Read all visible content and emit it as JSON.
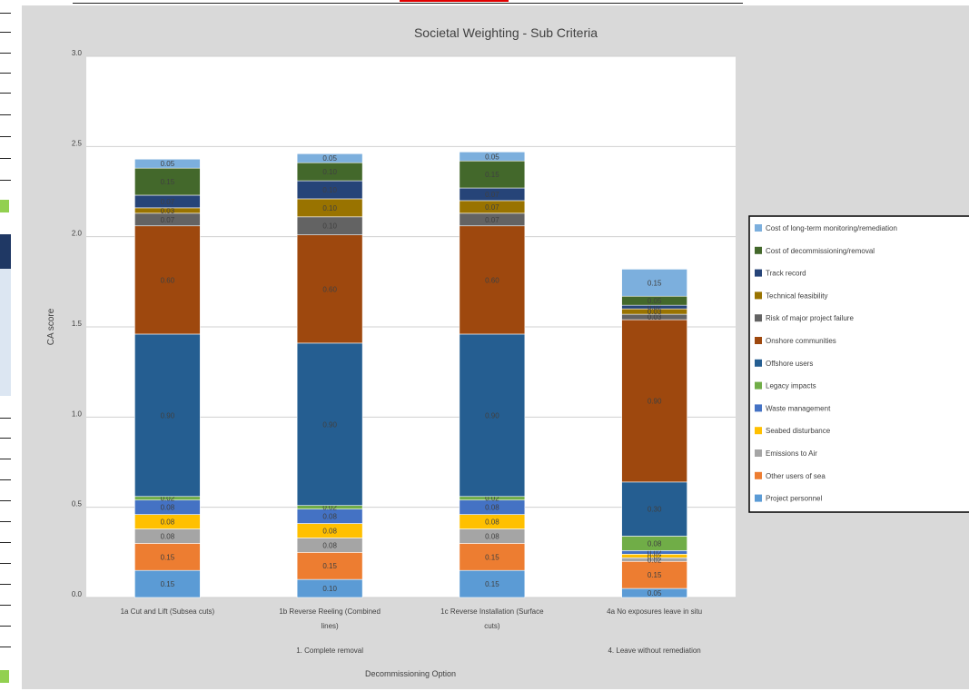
{
  "chart_data": {
    "type": "bar",
    "stacked": true,
    "title": "Societal Weighting - Sub Criteria",
    "xlabel": "Decommissioning Option",
    "ylabel": "CA score",
    "ylim": [
      0,
      3.0
    ],
    "yticks": [
      "0.0",
      "0.5",
      "1.0",
      "1.5",
      "2.0",
      "2.5",
      "3.0"
    ],
    "grid": true,
    "legend_position": "right",
    "categories": [
      "1a Cut and Lift (Subsea cuts)",
      "1b Reverse Reeling (Combined lines)",
      "1c Reverse Installation (Surface cuts)",
      "4a No exposures leave in situ"
    ],
    "category_lines": [
      [
        "1a Cut and Lift (Subsea cuts)"
      ],
      [
        "1b Reverse Reeling (Combined",
        "lines)"
      ],
      [
        "1c Reverse Installation (Surface",
        "cuts)"
      ],
      [
        "4a No exposures leave in situ"
      ]
    ],
    "groups": [
      {
        "label": "1. Complete removal",
        "under": 1
      },
      {
        "label": "4. Leave without remediation",
        "under": 3
      }
    ],
    "series": [
      {
        "name": "Project personnel",
        "color": "#5b9bd5",
        "values": [
          0.15,
          0.1,
          0.15,
          0.05
        ],
        "labels": [
          "0.15",
          "0.10",
          "0.15",
          "0.05"
        ]
      },
      {
        "name": "Other users of sea",
        "color": "#ed7d31",
        "values": [
          0.15,
          0.15,
          0.15,
          0.15
        ],
        "labels": [
          "0.15",
          "0.15",
          "0.15",
          "0.15"
        ]
      },
      {
        "name": "Emissions to Air",
        "color": "#a5a5a5",
        "values": [
          0.08,
          0.08,
          0.08,
          0.02
        ],
        "labels": [
          "0.08",
          "0.08",
          "0.08",
          "0.02"
        ]
      },
      {
        "name": "Seabed disturbance",
        "color": "#ffc000",
        "values": [
          0.08,
          0.08,
          0.08,
          0.02
        ],
        "labels": [
          "0.08",
          "0.08",
          "0.08",
          "0.02"
        ]
      },
      {
        "name": "Waste management",
        "color": "#4472c4",
        "values": [
          0.08,
          0.08,
          0.08,
          0.02
        ],
        "labels": [
          "0.08",
          "0.08",
          "0.08",
          "0.02"
        ]
      },
      {
        "name": "Legacy impacts",
        "color": "#70ad47",
        "values": [
          0.02,
          0.02,
          0.02,
          0.08
        ],
        "labels": [
          "0.02",
          "0.02",
          "0.02",
          "0.08"
        ]
      },
      {
        "name": "Offshore users",
        "color": "#255e91",
        "values": [
          0.9,
          0.9,
          0.9,
          0.3
        ],
        "labels": [
          "0.90",
          "0.90",
          "0.90",
          "0.30"
        ]
      },
      {
        "name": "Onshore communities",
        "color": "#9e480e",
        "values": [
          0.6,
          0.6,
          0.6,
          0.9
        ],
        "labels": [
          "0.60",
          "0.60",
          "0.60",
          "0.90"
        ]
      },
      {
        "name": "Risk of major project failure",
        "color": "#636363",
        "values": [
          0.07,
          0.1,
          0.07,
          0.03
        ],
        "labels": [
          "0.07",
          "0.10",
          "0.07",
          "0.03"
        ]
      },
      {
        "name": "Technical feasibility",
        "color": "#997300",
        "values": [
          0.03,
          0.1,
          0.07,
          0.03
        ],
        "labels": [
          "0.03",
          "0.10",
          "0.07",
          "0.03"
        ]
      },
      {
        "name": "Track record",
        "color": "#264478",
        "values": [
          0.07,
          0.1,
          0.07,
          0.02
        ],
        "labels": [
          "0.07",
          "0.10",
          "0.07",
          "0.02"
        ]
      },
      {
        "name": "Cost of decommissioning/removal",
        "color": "#43682b",
        "values": [
          0.15,
          0.1,
          0.15,
          0.05
        ],
        "labels": [
          "0.15",
          "0.10",
          "0.15",
          "0.05"
        ]
      },
      {
        "name": "Cost of long-term monitoring/remediation",
        "color": "#7cafdd",
        "values": [
          0.05,
          0.05,
          0.05,
          0.15
        ],
        "labels": [
          "0.05",
          "0.05",
          "0.05",
          "0.15"
        ]
      }
    ]
  }
}
